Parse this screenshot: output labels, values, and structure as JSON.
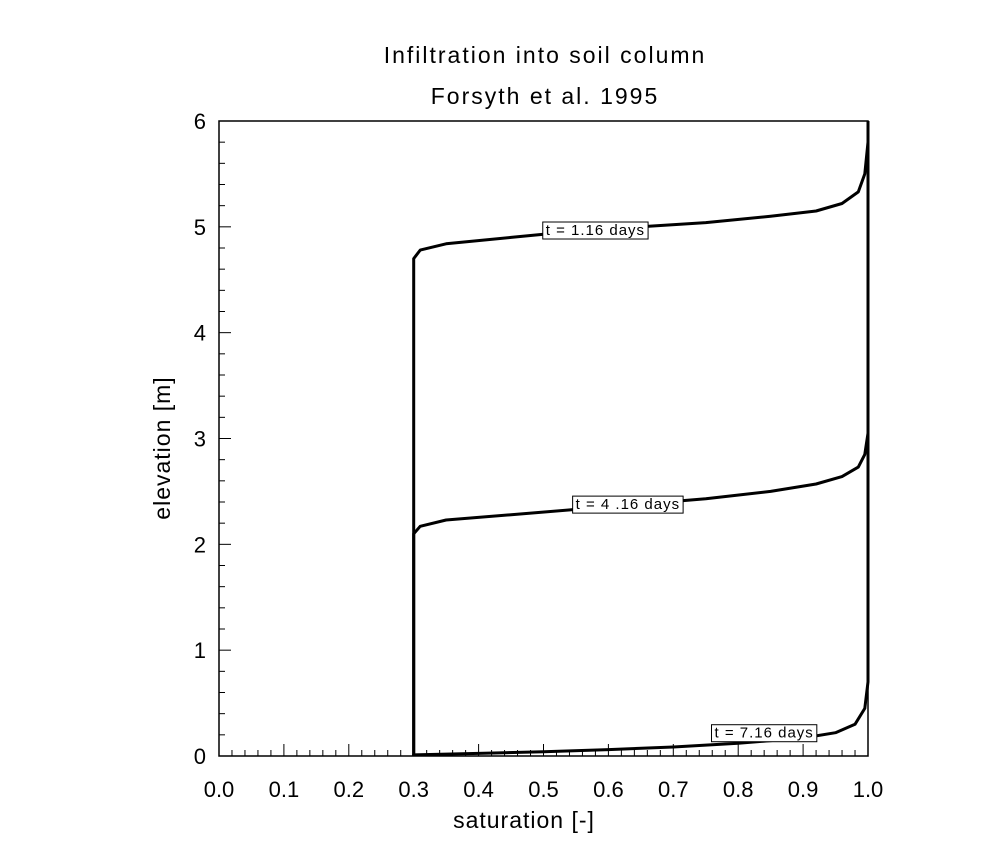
{
  "chart_data": {
    "type": "line",
    "title": "Infiltration into soil column",
    "subtitle": "Forsyth et al. 1995",
    "xlabel": "saturation [-]",
    "ylabel": "elevation [m]",
    "xlim": [
      0.0,
      1.0
    ],
    "ylim": [
      0,
      6
    ],
    "x_ticks": [
      "0.0",
      "0.1",
      "0.2",
      "0.3",
      "0.4",
      "0.5",
      "0.6",
      "0.7",
      "0.8",
      "0.9",
      "1.0"
    ],
    "y_ticks": [
      "0",
      "1",
      "2",
      "3",
      "4",
      "5",
      "6"
    ],
    "grid": false,
    "series": [
      {
        "name": "t = 1.16 days",
        "points": [
          [
            0.3,
            0
          ],
          [
            0.3,
            4.7
          ],
          [
            0.31,
            4.78
          ],
          [
            0.35,
            4.84
          ],
          [
            0.45,
            4.9
          ],
          [
            0.55,
            4.96
          ],
          [
            0.65,
            5.0
          ],
          [
            0.75,
            5.04
          ],
          [
            0.85,
            5.1
          ],
          [
            0.92,
            5.15
          ],
          [
            0.96,
            5.22
          ],
          [
            0.985,
            5.33
          ],
          [
            0.995,
            5.5
          ],
          [
            1.0,
            5.8
          ],
          [
            1.0,
            6.0
          ]
        ],
        "label_at": [
          0.58,
          4.97
        ]
      },
      {
        "name": "t = 4 .16 days",
        "points": [
          [
            0.3,
            0
          ],
          [
            0.3,
            2.1
          ],
          [
            0.31,
            2.17
          ],
          [
            0.35,
            2.23
          ],
          [
            0.45,
            2.28
          ],
          [
            0.55,
            2.33
          ],
          [
            0.65,
            2.38
          ],
          [
            0.75,
            2.43
          ],
          [
            0.85,
            2.5
          ],
          [
            0.92,
            2.57
          ],
          [
            0.96,
            2.64
          ],
          [
            0.985,
            2.73
          ],
          [
            0.995,
            2.85
          ],
          [
            1.0,
            3.05
          ],
          [
            1.0,
            6.0
          ]
        ],
        "label_at": [
          0.63,
          2.38
        ]
      },
      {
        "name": "t = 7.16 days",
        "points": [
          [
            0.3,
            0
          ],
          [
            0.3,
            0.01
          ],
          [
            0.4,
            0.025
          ],
          [
            0.5,
            0.04
          ],
          [
            0.6,
            0.06
          ],
          [
            0.7,
            0.085
          ],
          [
            0.8,
            0.12
          ],
          [
            0.9,
            0.17
          ],
          [
            0.95,
            0.22
          ],
          [
            0.98,
            0.3
          ],
          [
            0.995,
            0.45
          ],
          [
            1.0,
            0.7
          ],
          [
            1.0,
            6.0
          ]
        ],
        "label_at": [
          0.84,
          0.22
        ]
      }
    ]
  }
}
